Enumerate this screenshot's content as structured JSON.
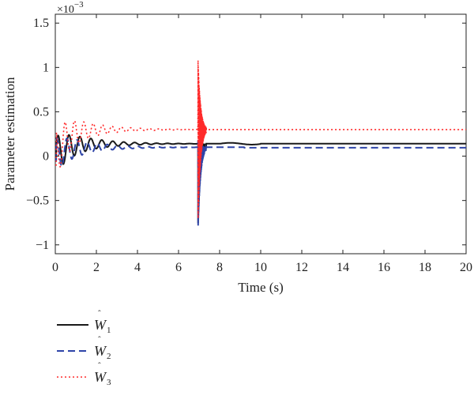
{
  "chart_data": {
    "type": "line",
    "xlabel": "Time (s)",
    "ylabel": "Parameter estimation",
    "y_exponent_label": "×10",
    "y_exponent_power": "−3",
    "xlim": [
      0,
      20
    ],
    "ylim": [
      -1.1,
      1.6
    ],
    "x_ticks": [
      0,
      2,
      4,
      6,
      8,
      10,
      12,
      14,
      16,
      18,
      20
    ],
    "y_ticks": [
      -1,
      -0.5,
      0,
      0.5,
      1,
      1.5
    ],
    "grid": false,
    "legend_position": "below-left",
    "series": [
      {
        "name": "Ŵ1",
        "legend_main": "W",
        "legend_sub": "1",
        "color": "#1a1a1a",
        "style": "solid",
        "settle_value": 0.14,
        "spike_min": -0.8,
        "spike_max": 0.15
      },
      {
        "name": "Ŵ2",
        "legend_main": "W",
        "legend_sub": "2",
        "color": "#2e44a8",
        "style": "dashed",
        "settle_value": 0.1,
        "spike_min": -0.83,
        "spike_max": 0.18
      },
      {
        "name": "Ŵ3",
        "legend_main": "W",
        "legend_sub": "3",
        "color": "#ff2a2a",
        "style": "dotted",
        "settle_value": 0.3,
        "spike_min": -0.75,
        "spike_max": 1.08
      }
    ]
  }
}
